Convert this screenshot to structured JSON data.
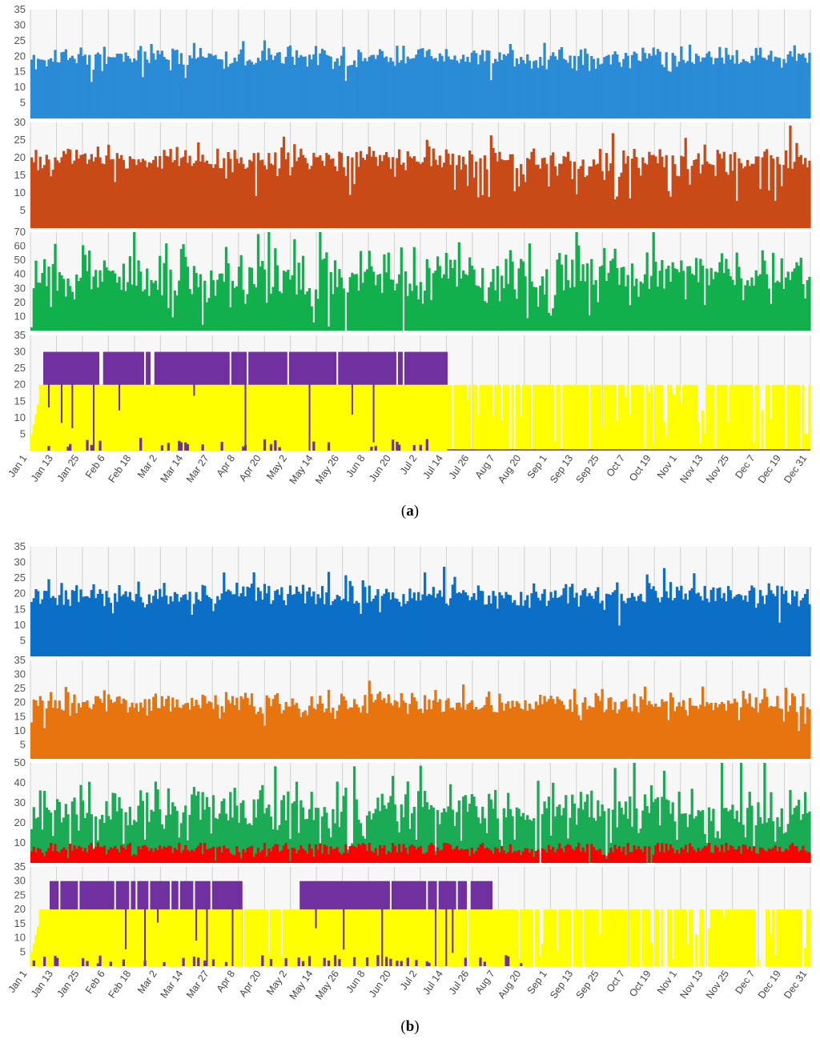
{
  "figure": {
    "panels": [
      {
        "label": "a",
        "caption_open": "(",
        "caption_close": ")",
        "x_ticks": [
          "Jan 1",
          "Jan 13",
          "Jan 25",
          "Feb 6",
          "Feb 18",
          "Mar 2",
          "Mar 14",
          "Mar 27",
          "Apr 8",
          "Apr 20",
          "May 2",
          "May 14",
          "May 26",
          "Jun 8",
          "Jun 20",
          "Jul 2",
          "Jul 14",
          "Jul 26",
          "Aug 7",
          "Aug 20",
          "Sep 1",
          "Sep 13",
          "Sep 25",
          "Oct 7",
          "Oct 19",
          "Nov 1",
          "Nov 13",
          "Nov 25",
          "Dec 7",
          "Dec 19",
          "Dec 31"
        ]
      },
      {
        "label": "b",
        "caption_open": "(",
        "caption_close": ")",
        "x_ticks": [
          "Jan 1",
          "Jan 13",
          "Jan 25",
          "Feb 6",
          "Feb 18",
          "Mar 2",
          "Mar 14",
          "Mar 27",
          "Apr 8",
          "Apr 20",
          "May 2",
          "May 14",
          "May 26",
          "Jun 8",
          "Jun 20",
          "Jul 2",
          "Jul 14",
          "Jul 26",
          "Aug 7",
          "Aug 20",
          "Sep 1",
          "Sep 13",
          "Sep 25",
          "Oct 7",
          "Oct 19",
          "Nov 1",
          "Nov 13",
          "Nov 25",
          "Dec 7",
          "Dec 19",
          "Dec 31"
        ]
      }
    ]
  },
  "chart_data": [
    {
      "panel": "a",
      "row": 1,
      "type": "bar",
      "series_name": "blue series (a)",
      "color": "#2a8bd6",
      "ylim": [
        0,
        35
      ],
      "yticks": [
        5,
        10,
        15,
        20,
        25,
        30,
        35
      ],
      "mean": 19.5,
      "spread": 2.3,
      "x_range": [
        "Jan 1",
        "Dec 31"
      ]
    },
    {
      "panel": "a",
      "row": 2,
      "type": "bar",
      "series_name": "orange series (a)",
      "color": "#c94a17",
      "ylim": [
        0,
        30
      ],
      "yticks": [
        5,
        10,
        15,
        20,
        25,
        30
      ],
      "mean": 19,
      "spread": 2.5,
      "x_range": [
        "Jan 1",
        "Dec 31"
      ],
      "note": "frequent dips to 8-15 between Jul 14 and Dec 31"
    },
    {
      "panel": "a",
      "row": 3,
      "type": "bar",
      "series_name": "green series (a)",
      "color": "#11b04c",
      "ylim": [
        0,
        70
      ],
      "yticks": [
        10,
        20,
        30,
        40,
        50,
        60,
        70
      ],
      "mean": 38,
      "spread": 12,
      "x_range": [
        "Jan 1",
        "Dec 31"
      ]
    },
    {
      "panel": "a",
      "row": 4,
      "type": "bar",
      "series_name": "purple/yellow series (a)",
      "series": [
        {
          "name": "purple",
          "color": "#7030a0",
          "values": "30 from Jan 5 to Jul 14, then 0"
        },
        {
          "name": "yellow",
          "color": "#ffff00",
          "values": "20 most days, with dips to 0"
        }
      ],
      "ylim": [
        0,
        35
      ],
      "yticks": [
        5,
        10,
        15,
        20,
        25,
        30,
        35
      ],
      "purple_end": "Jul 14"
    },
    {
      "panel": "b",
      "row": 1,
      "type": "bar",
      "series_name": "blue series (b)",
      "color": "#0b6fc6",
      "ylim": [
        0,
        35
      ],
      "yticks": [
        5,
        10,
        15,
        20,
        25,
        30,
        35
      ],
      "mean": 19.5,
      "spread": 2.3,
      "x_range": [
        "Jan 1",
        "Dec 31"
      ]
    },
    {
      "panel": "b",
      "row": 2,
      "type": "bar",
      "series_name": "orange series (b)",
      "color": "#e8740f",
      "ylim": [
        0,
        35
      ],
      "yticks": [
        5,
        10,
        15,
        20,
        25,
        30,
        35
      ],
      "mean": 19.5,
      "spread": 2.4,
      "x_range": [
        "Jan 1",
        "Dec 31"
      ]
    },
    {
      "panel": "b",
      "row": 3,
      "type": "bar",
      "series_name": "green/red series (b)",
      "series": [
        {
          "name": "green",
          "color": "#1aab54",
          "mean": 26,
          "spread": 8
        },
        {
          "name": "red",
          "color": "#ff0000",
          "mean": 7,
          "spread": 2
        }
      ],
      "ylim": [
        0,
        50
      ],
      "yticks": [
        10,
        20,
        30,
        40,
        50
      ]
    },
    {
      "panel": "b",
      "row": 4,
      "type": "bar",
      "series_name": "purple/yellow series (b)",
      "series": [
        {
          "name": "purple",
          "color": "#7030a0",
          "values": "30 in intermittent blocks from Jan 1 to Aug 20, then 0"
        },
        {
          "name": "yellow",
          "color": "#ffff00",
          "values": "20 most days, with dips to 0"
        }
      ],
      "ylim": [
        0,
        35
      ],
      "yticks": [
        5,
        10,
        15,
        20,
        25,
        30,
        35
      ],
      "purple_end": "Aug 20"
    }
  ]
}
